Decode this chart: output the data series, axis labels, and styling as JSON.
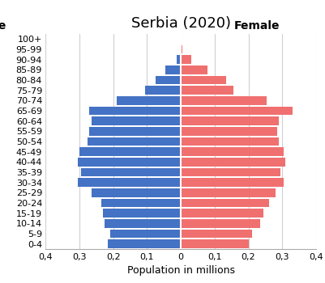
{
  "title": "Serbia (2020)",
  "xlabel": "Population in millions",
  "male_label": "Male",
  "female_label": "Female",
  "age_groups": [
    "0-4",
    "5-9",
    "10-14",
    "15-19",
    "20-24",
    "25-29",
    "30-34",
    "35-39",
    "40-44",
    "45-49",
    "50-54",
    "55-59",
    "60-64",
    "65-69",
    "70-74",
    "75-79",
    "80-84",
    "85-89",
    "90-94",
    "95-99",
    "100+"
  ],
  "male_values": [
    0.215,
    0.21,
    0.225,
    0.23,
    0.235,
    0.265,
    0.305,
    0.295,
    0.305,
    0.3,
    0.275,
    0.27,
    0.265,
    0.27,
    0.19,
    0.105,
    0.075,
    0.045,
    0.012,
    0.002,
    0.001
  ],
  "female_values": [
    0.2,
    0.21,
    0.235,
    0.245,
    0.26,
    0.28,
    0.305,
    0.295,
    0.31,
    0.305,
    0.29,
    0.285,
    0.29,
    0.33,
    0.255,
    0.155,
    0.135,
    0.08,
    0.03,
    0.005,
    0.003
  ],
  "male_color": "#4472C4",
  "female_color": "#F07070",
  "background_color": "#FFFFFF",
  "xlim": 0.4,
  "xtick_labels": [
    "0,4",
    "0,3",
    "0,2",
    "0,1",
    "0",
    "0,1",
    "0,2",
    "0,3",
    "0,4"
  ],
  "xtick_values": [
    -0.4,
    -0.3,
    -0.2,
    -0.1,
    0,
    0.1,
    0.2,
    0.3,
    0.4
  ],
  "grid_color": "#D0D0D0",
  "title_fontsize": 13,
  "male_label_fontsize": 10,
  "female_label_fontsize": 10,
  "axis_label_fontsize": 9,
  "tick_fontsize": 8,
  "bar_height": 0.85
}
